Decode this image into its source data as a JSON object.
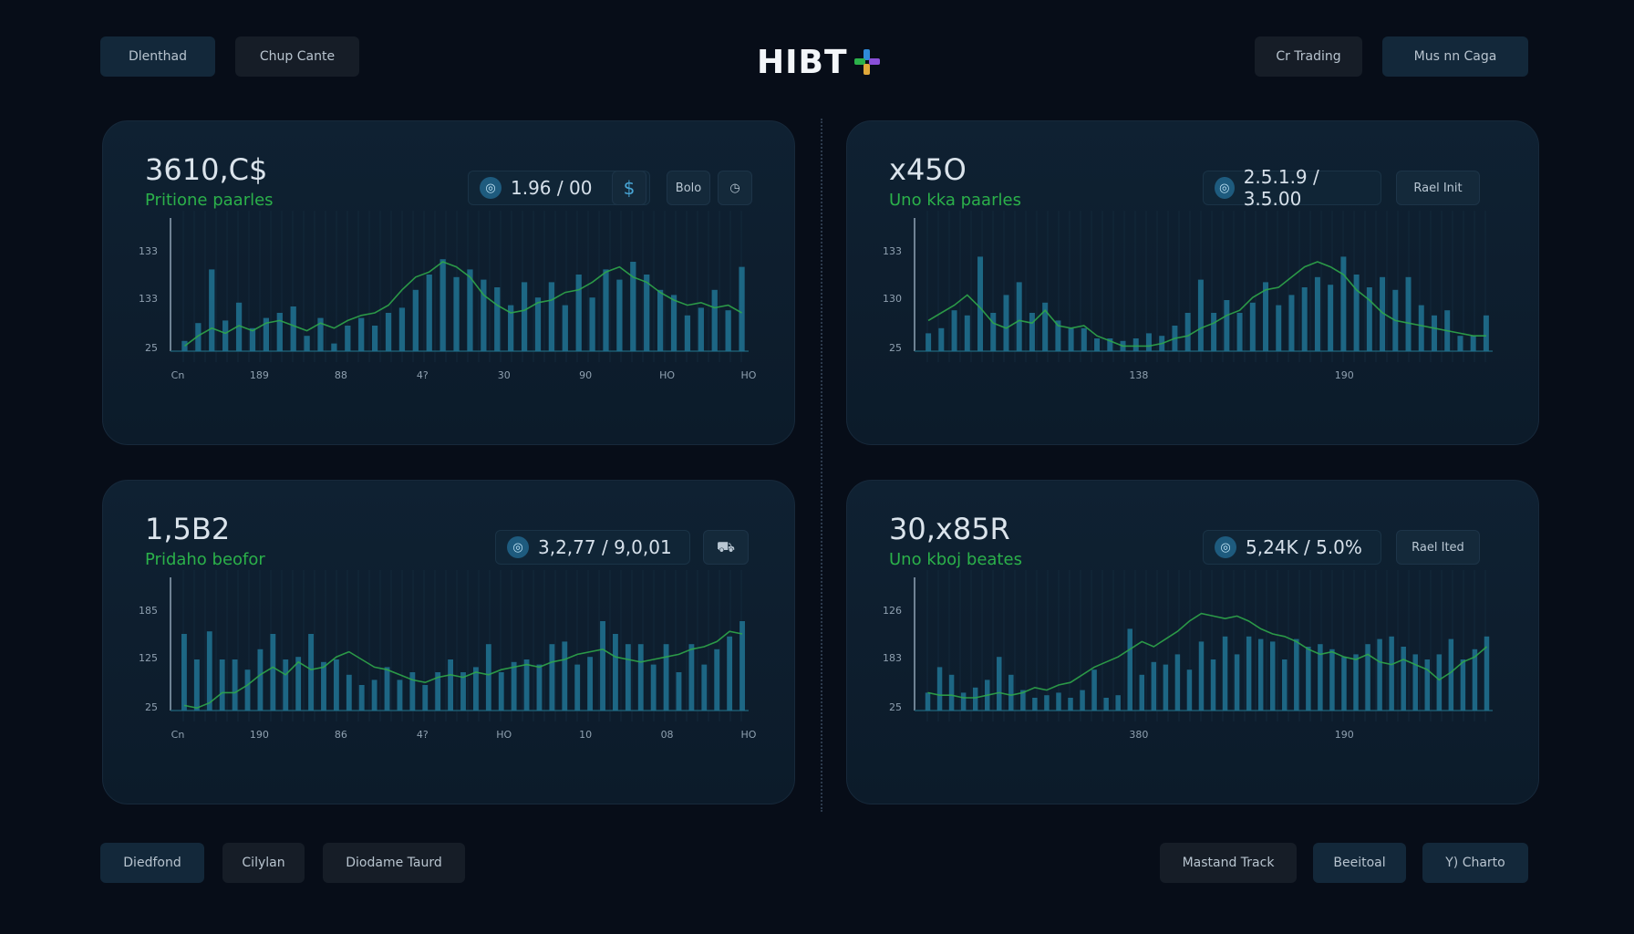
{
  "header": {
    "left_buttons": [
      "Dlenthad",
      "Chup Cante"
    ],
    "logo": "HIBT",
    "right_buttons": [
      "Cr Trading",
      "Mus nn Caga"
    ]
  },
  "footer": {
    "left_buttons": [
      "Diedfond",
      "Cilylan",
      "Diodame Taurd"
    ],
    "right_buttons": [
      "Mastand Track",
      "Beeitoal",
      "Y) Charto"
    ]
  },
  "colors": {
    "bar": "#1f6f8e",
    "line": "#2fa64a",
    "positive": "#2bb14a",
    "grid": "#13283a"
  },
  "panels": [
    {
      "value": "3610,C$",
      "subtitle": "Pritione paarles",
      "stats": "1.96 / 00",
      "stats_icon": "coin-icon",
      "extra_icon": "dollar-icon",
      "action": "Bolo",
      "action_icon": "clock-icon",
      "y_ticks": [
        "133",
        "133",
        "25"
      ],
      "x_ticks": [
        "Cn",
        "189",
        "88",
        "4?",
        "30",
        "90",
        "HO",
        "HO"
      ],
      "chart_data": {
        "type": "bar",
        "bars": [
          8,
          22,
          64,
          24,
          38,
          18,
          26,
          30,
          35,
          12,
          26,
          6,
          20,
          26,
          20,
          30,
          34,
          48,
          60,
          72,
          58,
          64,
          56,
          50,
          36,
          54,
          42,
          54,
          36,
          60,
          42,
          64,
          56,
          70,
          60,
          48,
          44,
          28,
          34,
          48,
          32,
          66
        ],
        "line": [
          4,
          12,
          18,
          14,
          20,
          16,
          22,
          24,
          20,
          16,
          22,
          18,
          24,
          28,
          30,
          36,
          48,
          58,
          62,
          70,
          66,
          58,
          44,
          36,
          30,
          32,
          38,
          40,
          46,
          48,
          54,
          62,
          66,
          58,
          54,
          46,
          40,
          36,
          38,
          34,
          36,
          30
        ],
        "ylim": [
          0,
          100
        ]
      }
    },
    {
      "value": "x45O",
      "subtitle": "Uno kka paarles",
      "stats": "2.5.1.9 / 3.5.00",
      "stats_icon": "coin-icon",
      "action": "Rael Init",
      "y_ticks": [
        "133",
        "130",
        "25"
      ],
      "x_ticks": [
        "138",
        "190"
      ],
      "chart_data": {
        "type": "bar",
        "bars": [
          14,
          18,
          32,
          28,
          74,
          30,
          44,
          54,
          30,
          38,
          24,
          18,
          18,
          10,
          10,
          8,
          10,
          14,
          12,
          20,
          30,
          56,
          30,
          40,
          30,
          38,
          54,
          36,
          44,
          50,
          58,
          52,
          74,
          60,
          50,
          58,
          48,
          58,
          36,
          28,
          32,
          12,
          12,
          28
        ],
        "line": [
          24,
          30,
          36,
          44,
          34,
          22,
          18,
          24,
          22,
          32,
          20,
          18,
          20,
          12,
          8,
          4,
          4,
          4,
          6,
          10,
          12,
          18,
          22,
          28,
          32,
          42,
          48,
          50,
          58,
          66,
          70,
          66,
          60,
          48,
          40,
          30,
          24,
          22,
          20,
          18,
          16,
          14,
          12,
          12
        ],
        "ylim": [
          0,
          100
        ]
      }
    },
    {
      "value": "1,5B2",
      "subtitle": "Pridaho beofor",
      "stats": "3,2,77 / 9,0,01",
      "stats_icon": "coin-icon",
      "action_icon": "car-icon",
      "y_ticks": [
        "185",
        "125",
        "25"
      ],
      "x_ticks": [
        "Cn",
        "190",
        "86",
        "4?",
        "HO",
        "10",
        "08",
        "HO"
      ],
      "chart_data": {
        "type": "bar",
        "bars": [
          60,
          40,
          62,
          40,
          40,
          32,
          48,
          60,
          40,
          42,
          60,
          38,
          40,
          28,
          20,
          24,
          34,
          24,
          30,
          20,
          30,
          40,
          30,
          34,
          52,
          30,
          38,
          40,
          36,
          52,
          54,
          36,
          42,
          70,
          60,
          52,
          52,
          36,
          52,
          30,
          52,
          36,
          48,
          58,
          70
        ],
        "line": [
          4,
          2,
          6,
          14,
          14,
          20,
          28,
          34,
          28,
          38,
          32,
          34,
          42,
          46,
          40,
          34,
          32,
          28,
          24,
          22,
          26,
          28,
          26,
          30,
          28,
          32,
          34,
          36,
          34,
          38,
          40,
          44,
          46,
          48,
          42,
          40,
          38,
          40,
          42,
          44,
          48,
          50,
          54,
          62,
          60
        ],
        "ylim": [
          0,
          100
        ]
      }
    },
    {
      "value": "30,x85R",
      "subtitle": "Uno kboj beates",
      "stats": "5,24K / 5.0%",
      "stats_icon": "coin-icon",
      "action": "Rael Ited",
      "y_ticks": [
        "126",
        "183",
        "25"
      ],
      "x_ticks": [
        "380",
        "190"
      ],
      "chart_data": {
        "type": "bar",
        "bars": [
          14,
          34,
          28,
          14,
          18,
          24,
          42,
          28,
          16,
          10,
          12,
          14,
          10,
          16,
          32,
          10,
          12,
          64,
          28,
          38,
          36,
          44,
          32,
          54,
          40,
          58,
          44,
          58,
          56,
          54,
          40,
          56,
          50,
          52,
          48,
          42,
          44,
          52,
          56,
          58,
          50,
          44,
          40,
          44,
          56,
          40,
          48,
          58
        ],
        "line": [
          14,
          12,
          12,
          10,
          10,
          12,
          14,
          12,
          14,
          18,
          16,
          20,
          22,
          28,
          34,
          38,
          42,
          48,
          54,
          50,
          56,
          62,
          70,
          76,
          74,
          72,
          74,
          70,
          64,
          60,
          58,
          54,
          48,
          44,
          46,
          42,
          40,
          44,
          38,
          36,
          40,
          36,
          32,
          24,
          30,
          38,
          42,
          50
        ],
        "ylim": [
          0,
          100
        ]
      }
    }
  ]
}
